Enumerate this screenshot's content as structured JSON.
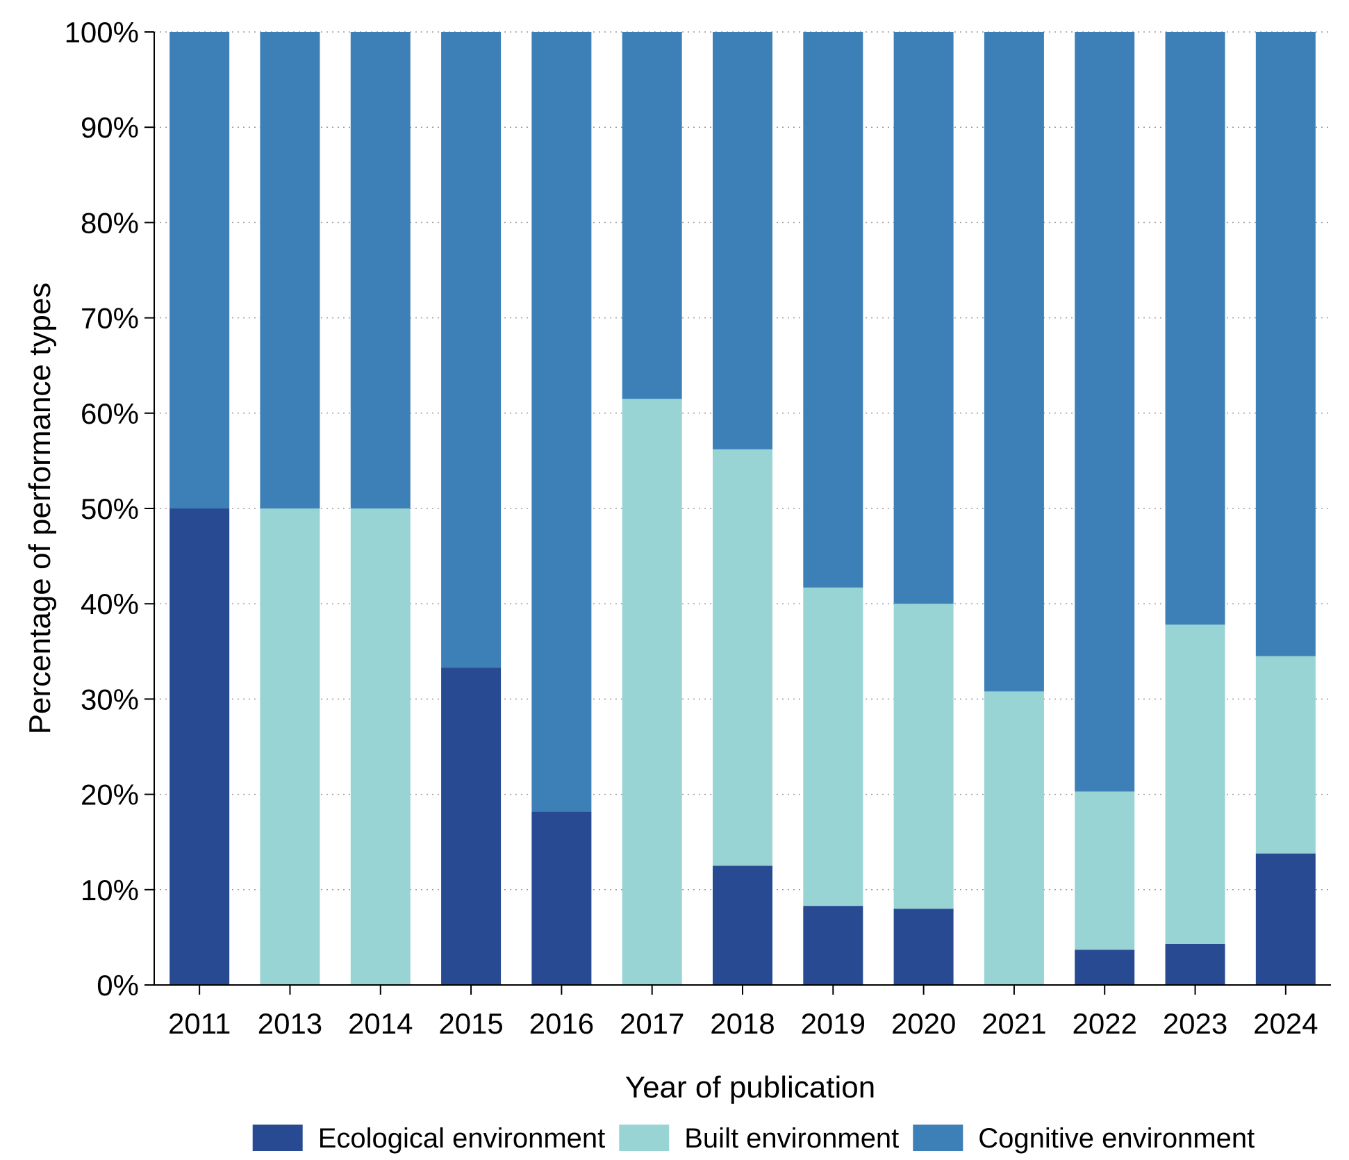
{
  "chart_data": {
    "type": "bar",
    "stacked": true,
    "title": "",
    "xlabel": "Year of publication",
    "ylabel": "Percentage of performance types",
    "ylim": [
      0,
      100
    ],
    "y_ticks": [
      0,
      10,
      20,
      30,
      40,
      50,
      60,
      70,
      80,
      90,
      100
    ],
    "y_tick_labels": [
      "0%",
      "10%",
      "20%",
      "30%",
      "40%",
      "50%",
      "60%",
      "70%",
      "80%",
      "90%",
      "100%"
    ],
    "grid": "horizontal dotted",
    "legend_position": "bottom",
    "categories": [
      "2011",
      "2013",
      "2014",
      "2015",
      "2016",
      "2017",
      "2018",
      "2019",
      "2020",
      "2021",
      "2022",
      "2023",
      "2024"
    ],
    "series": [
      {
        "name": "Ecological environment",
        "color": "#284a92",
        "values": [
          50,
          0,
          0,
          33.3,
          18.2,
          0,
          12.5,
          8.3,
          8,
          0,
          3.7,
          4.3,
          13.8
        ]
      },
      {
        "name": "Built environment",
        "color": "#99d4d4",
        "values": [
          0,
          50,
          50,
          0,
          0,
          61.5,
          43.7,
          33.4,
          32,
          30.8,
          16.6,
          33.5,
          20.7
        ]
      },
      {
        "name": "Cognitive environment",
        "color": "#3d80b8",
        "values": [
          50,
          50,
          50,
          66.7,
          81.8,
          38.5,
          43.8,
          58.3,
          60,
          69.2,
          79.7,
          62.2,
          65.5
        ]
      }
    ]
  }
}
